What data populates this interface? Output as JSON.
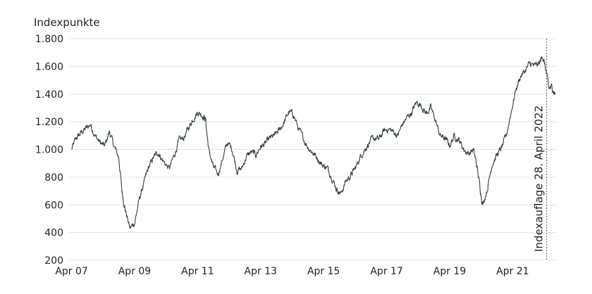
{
  "chart_data": {
    "type": "line",
    "title": "",
    "ylabel": "Indexpunkte",
    "xlabel": "",
    "ylim": [
      200,
      1800
    ],
    "yticks": [
      200,
      400,
      600,
      800,
      1000,
      1200,
      1400,
      1600,
      1800
    ],
    "ytick_labels": [
      "200",
      "400",
      "600",
      "800",
      "1.000",
      "1.200",
      "1.400",
      "1.600",
      "1.800"
    ],
    "xlim": [
      2007.17,
      2022.65
    ],
    "xticks": [
      2007.25,
      2009.25,
      2011.25,
      2013.25,
      2015.25,
      2017.25,
      2019.25,
      2021.25
    ],
    "xtick_labels": [
      "Apr 07",
      "Apr 09",
      "Apr 11",
      "Apr 13",
      "Apr 15",
      "Apr 17",
      "Apr 19",
      "Apr 21"
    ],
    "grid": true,
    "legend": "none",
    "line_color": "#2f3e3c",
    "annotation": {
      "x": 2022.33,
      "text": "Indexauflage 28. April 2022"
    },
    "series": [
      {
        "name": "",
        "x": [
          2007.25,
          2007.4,
          2007.55,
          2007.7,
          2007.85,
          2008.0,
          2008.15,
          2008.3,
          2008.45,
          2008.6,
          2008.75,
          2008.85,
          2008.95,
          2009.1,
          2009.25,
          2009.4,
          2009.55,
          2009.7,
          2009.85,
          2010.0,
          2010.15,
          2010.35,
          2010.5,
          2010.65,
          2010.8,
          2010.95,
          2011.1,
          2011.25,
          2011.4,
          2011.5,
          2011.6,
          2011.75,
          2011.9,
          2012.05,
          2012.2,
          2012.35,
          2012.5,
          2012.65,
          2012.8,
          2012.95,
          2013.1,
          2013.25,
          2013.4,
          2013.55,
          2013.7,
          2013.85,
          2014.0,
          2014.15,
          2014.3,
          2014.45,
          2014.6,
          2014.75,
          2014.9,
          2015.05,
          2015.2,
          2015.35,
          2015.5,
          2015.65,
          2015.8,
          2015.95,
          2016.1,
          2016.25,
          2016.4,
          2016.55,
          2016.7,
          2016.85,
          2017.0,
          2017.15,
          2017.3,
          2017.45,
          2017.6,
          2017.75,
          2017.9,
          2018.05,
          2018.2,
          2018.35,
          2018.5,
          2018.65,
          2018.8,
          2018.95,
          2019.1,
          2019.25,
          2019.4,
          2019.55,
          2019.7,
          2019.85,
          2020.0,
          2020.1,
          2020.2,
          2020.3,
          2020.45,
          2020.6,
          2020.75,
          2020.9,
          2021.05,
          2021.2,
          2021.35,
          2021.5,
          2021.65,
          2021.8,
          2021.95,
          2022.1,
          2022.2,
          2022.3,
          2022.4,
          2022.5,
          2022.6
        ],
        "values": [
          1000,
          1080,
          1120,
          1150,
          1180,
          1100,
          1050,
          1020,
          1130,
          1020,
          940,
          700,
          570,
          430,
          470,
          640,
          760,
          870,
          940,
          980,
          920,
          860,
          950,
          1060,
          1080,
          1150,
          1220,
          1270,
          1250,
          1220,
          1000,
          870,
          820,
          940,
          1050,
          1000,
          850,
          860,
          950,
          980,
          960,
          1020,
          1040,
          1080,
          1100,
          1140,
          1200,
          1270,
          1250,
          1150,
          1080,
          1020,
          980,
          940,
          890,
          870,
          810,
          720,
          680,
          770,
          810,
          860,
          940,
          1000,
          1050,
          1080,
          1070,
          1130,
          1150,
          1130,
          1100,
          1180,
          1230,
          1270,
          1340,
          1320,
          1260,
          1300,
          1210,
          1100,
          1080,
          1030,
          1100,
          1070,
          1000,
          970,
          1000,
          900,
          750,
          600,
          720,
          900,
          960,
          1010,
          1100,
          1270,
          1430,
          1530,
          1570,
          1620,
          1600,
          1620,
          1680,
          1580,
          1440,
          1450,
          1400
        ]
      }
    ]
  }
}
